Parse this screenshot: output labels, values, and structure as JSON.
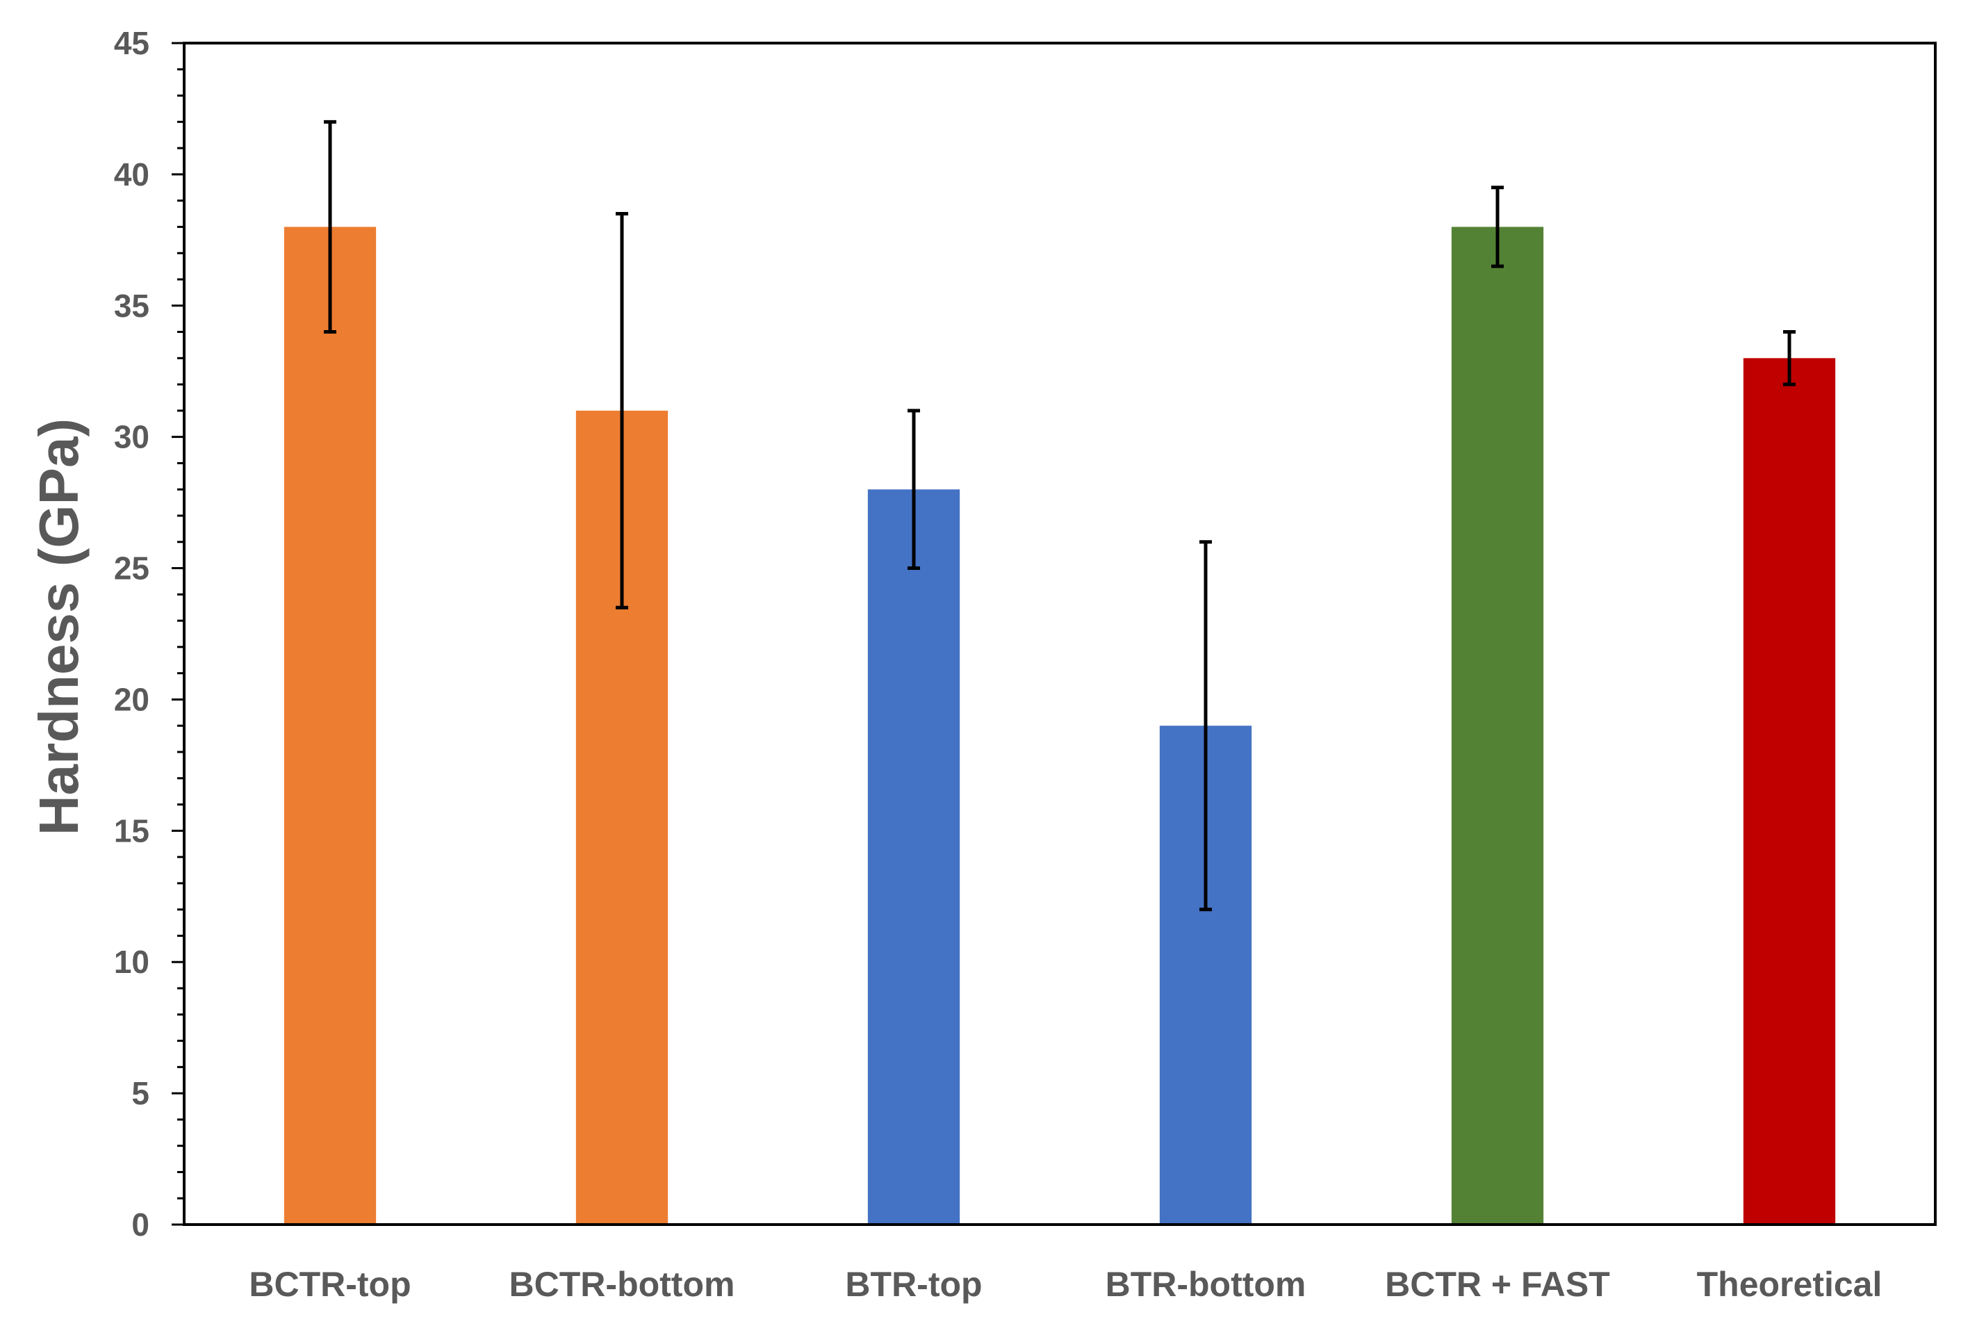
{
  "chart_data": {
    "type": "bar",
    "title": "",
    "xlabel": "",
    "ylabel": "Hardness (GPa)",
    "ylim": [
      0,
      45
    ],
    "yticks": [
      "0",
      "5",
      "10",
      "15",
      "20",
      "25",
      "30",
      "35",
      "40",
      "45"
    ],
    "ytick_values": [
      0,
      5,
      10,
      15,
      20,
      25,
      30,
      35,
      40,
      45
    ],
    "minor_tick_step": 1,
    "grid": false,
    "legend": "none",
    "categories": [
      "BCTR-top",
      "BCTR-bottom",
      "BTR-top",
      "BTR-bottom",
      "BCTR + FAST",
      "Theoretical"
    ],
    "values": [
      38,
      31,
      28,
      19,
      38,
      33
    ],
    "error_low": [
      34,
      23.5,
      25,
      12,
      36.5,
      32
    ],
    "error_high": [
      42,
      38.5,
      31,
      26,
      39.5,
      34
    ],
    "colors": [
      "#ED7D31",
      "#ED7D31",
      "#4472C4",
      "#4472C4",
      "#548235",
      "#C00000"
    ],
    "axis_color": "#000000",
    "text_color": "#595959"
  }
}
